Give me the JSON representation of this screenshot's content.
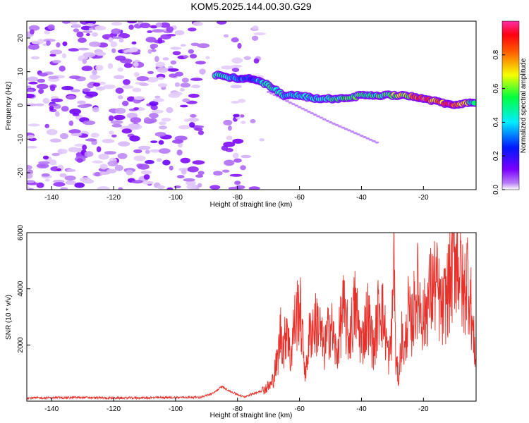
{
  "title": "KOM5.2025.144.00.30.G29",
  "chart_data": [
    {
      "type": "heatmap",
      "xlabel": "Height of straight line (km)",
      "ylabel": "Frequency (Hz)",
      "xlim": [
        -148,
        -3
      ],
      "ylim": [
        -25,
        25
      ],
      "xticks": [
        -140,
        -120,
        -100,
        -80,
        -60,
        -40,
        -20
      ],
      "yticks": [
        -20,
        -10,
        0,
        10,
        20
      ],
      "colorbar": {
        "label": "Normalized spectral amplitude",
        "range": [
          0,
          1
        ],
        "ticks": [
          0.0,
          0.2,
          0.4,
          0.6,
          0.8
        ],
        "tick_labels": [
          "0.0",
          "0.2",
          "0.4",
          "0.6",
          "0.8"
        ],
        "colormap": "rainbow (white, purple, blue, cyan, green, yellow, orange, red, magenta)"
      },
      "noise_region_x": [
        -148,
        -72
      ],
      "ridge": {
        "description": "dominant frequency track",
        "x": [
          -87,
          -80,
          -75,
          -70,
          -65,
          -60,
          -55,
          -50,
          -45,
          -40,
          -35,
          -30,
          -25,
          -20,
          -15,
          -10,
          -5,
          -3
        ],
        "freq": [
          9,
          8,
          8,
          6,
          3,
          3,
          2,
          2,
          2,
          3,
          3,
          3,
          3,
          2,
          1,
          0,
          1,
          1
        ],
        "amplitude": [
          0.5,
          0.35,
          0.3,
          0.5,
          0.45,
          0.4,
          0.45,
          0.5,
          0.55,
          0.6,
          0.55,
          0.6,
          0.7,
          0.9,
          0.85,
          0.95,
          0.6,
          0.5
        ]
      },
      "faint_branch": {
        "x": [
          -70,
          -50,
          -35
        ],
        "freq": [
          4,
          -5,
          -11
        ]
      }
    },
    {
      "type": "line",
      "xlabel": "Height of straight line (km)",
      "ylabel": "SNR (10 * v/v)",
      "xlim": [
        -148,
        -3
      ],
      "ylim": [
        0,
        6000
      ],
      "xticks": [
        -140,
        -120,
        -100,
        -80,
        -60,
        -40,
        -20
      ],
      "yticks": [
        2000,
        4000,
        6000
      ],
      "color": "#e8302a",
      "series": [
        {
          "x": [
            -148,
            -140,
            -130,
            -120,
            -110,
            -100,
            -92,
            -88,
            -85,
            -82,
            -78,
            -72,
            -69,
            -67,
            -66,
            -65,
            -64,
            -63,
            -62,
            -60,
            -58,
            -57,
            -56,
            -54,
            -52,
            -50,
            -48,
            -46,
            -44,
            -42,
            -40,
            -38,
            -36,
            -34,
            -32,
            -31,
            -30,
            -29.5,
            -29,
            -28,
            -27,
            -26,
            -25,
            -24,
            -22,
            -20,
            -18,
            -16,
            -14,
            -12,
            -11,
            -10,
            -9,
            -8,
            -7,
            -6,
            -5,
            -4,
            -3.2
          ],
          "y": [
            110,
            120,
            130,
            110,
            120,
            130,
            140,
            270,
            520,
            330,
            150,
            380,
            600,
            1500,
            2600,
            1800,
            3000,
            1400,
            2500,
            3500,
            900,
            2200,
            2600,
            2800,
            1800,
            2800,
            1600,
            3300,
            2200,
            3400,
            2000,
            3100,
            1800,
            3700,
            2200,
            1400,
            3000,
            6000,
            1500,
            800,
            2300,
            1700,
            3200,
            2600,
            4000,
            2900,
            3800,
            4200,
            3100,
            4000,
            4400,
            5500,
            5100,
            4700,
            3600,
            4600,
            4000,
            2300,
            1800
          ]
        }
      ]
    }
  ]
}
